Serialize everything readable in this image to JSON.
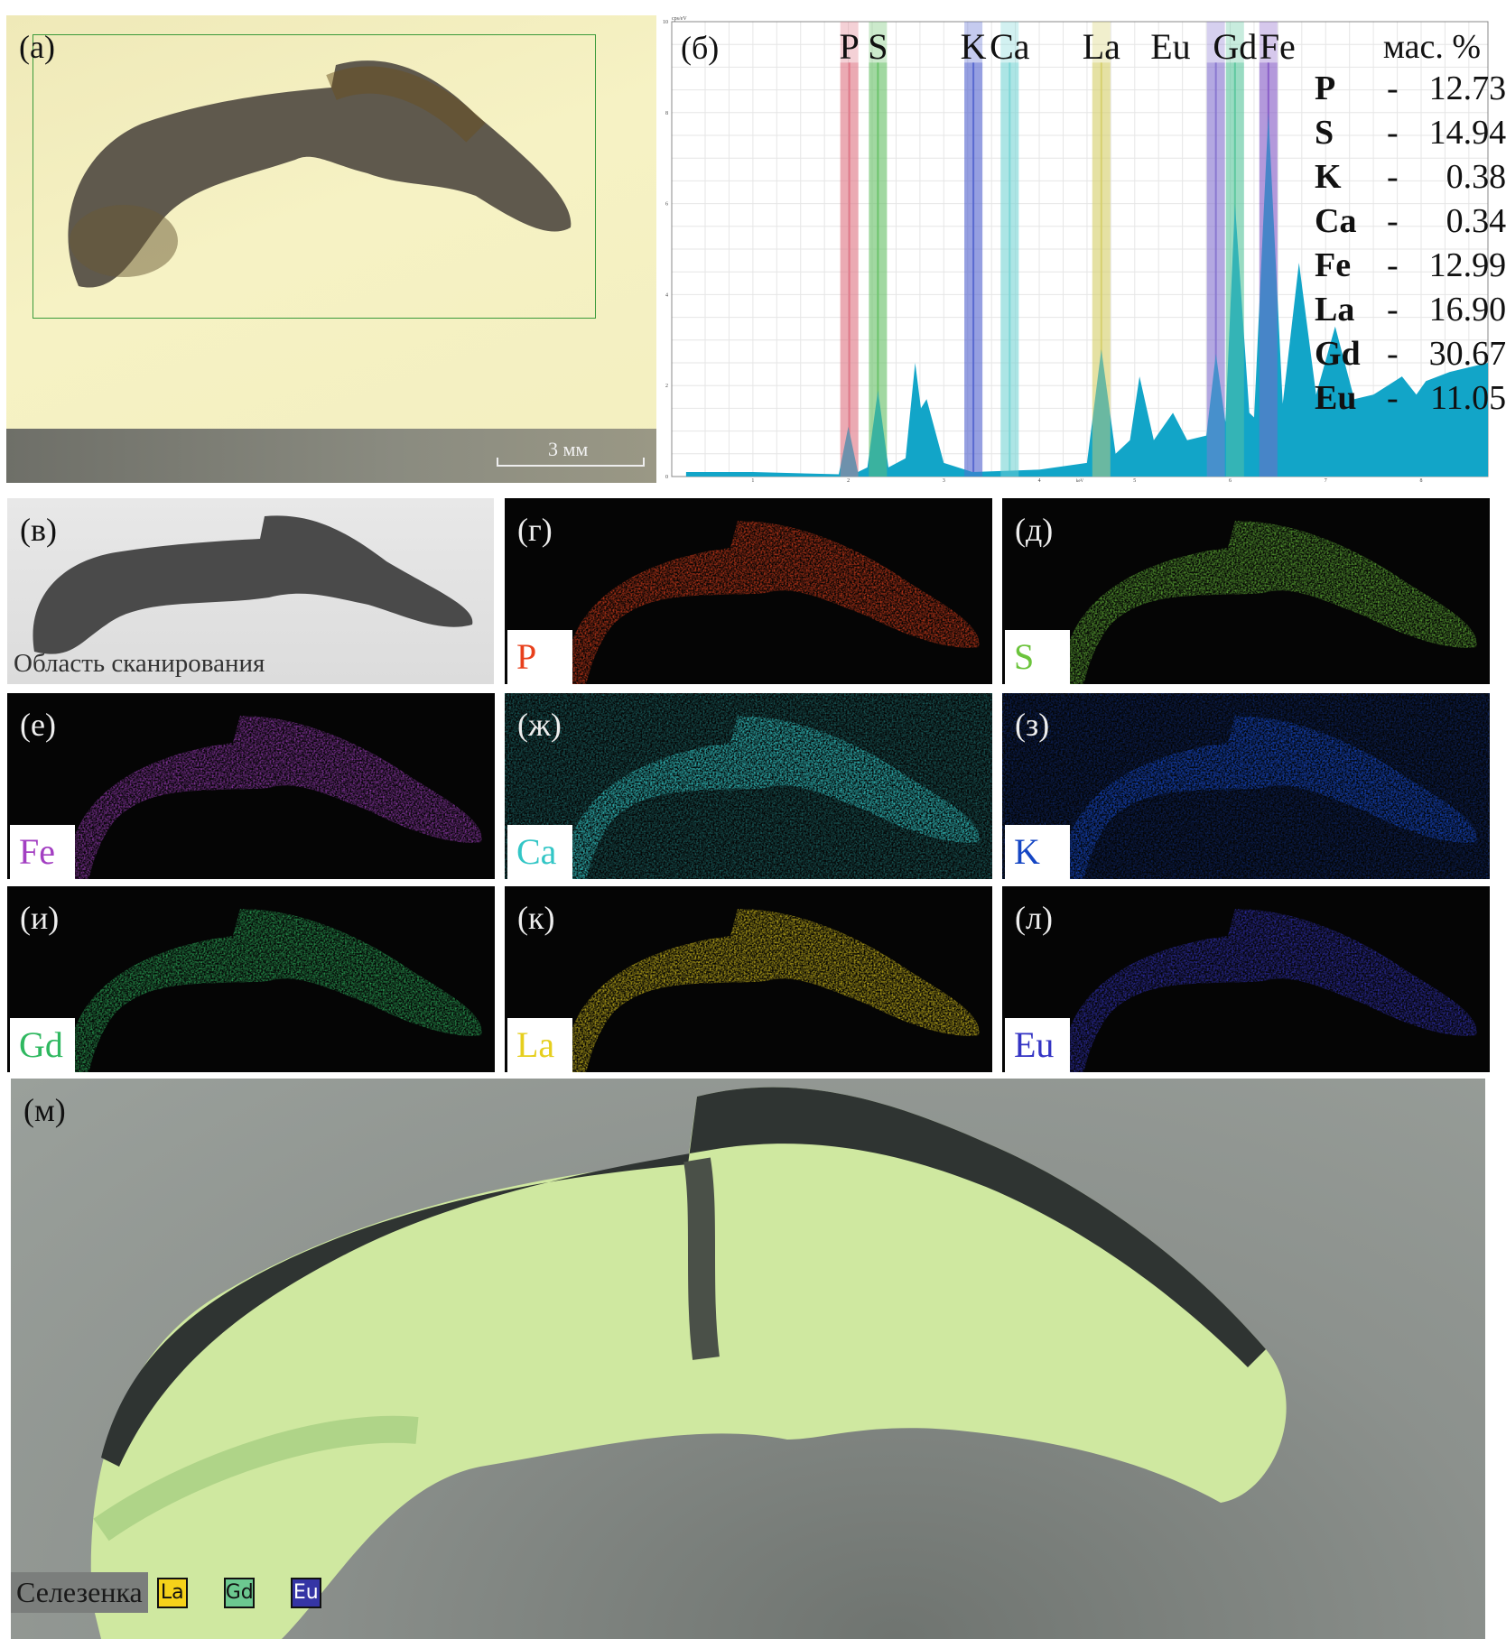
{
  "panel_a": {
    "label": "(а)",
    "scale_bar": "3 мм"
  },
  "panel_b": {
    "label": "(б)",
    "mass_title": "мас. %",
    "composition": [
      {
        "el": "P",
        "value": "12.73"
      },
      {
        "el": "S",
        "value": "14.94"
      },
      {
        "el": "K",
        "value": "0.38"
      },
      {
        "el": "Ca",
        "value": "0.34"
      },
      {
        "el": "Fe",
        "value": "12.99"
      },
      {
        "el": "La",
        "value": "16.90"
      },
      {
        "el": "Gd",
        "value": "30.67"
      },
      {
        "el": "Eu",
        "value": "11.05"
      }
    ]
  },
  "chart_data": {
    "type": "area",
    "xlabel": "keV",
    "ylabel": "cps/eV",
    "xlim": [
      0.15,
      8.7
    ],
    "ylim": [
      0,
      10
    ],
    "xticks": [
      1,
      2,
      3,
      4,
      5,
      6,
      7,
      8
    ],
    "yticks": [
      0,
      2,
      4,
      6,
      8,
      10
    ],
    "grid": true,
    "fill_color": "#12a5c8",
    "spectrum": [
      [
        0.3,
        0.1
      ],
      [
        1.0,
        0.1
      ],
      [
        1.9,
        0.05
      ],
      [
        2.0,
        1.1
      ],
      [
        2.1,
        0.1
      ],
      [
        2.2,
        0.2
      ],
      [
        2.31,
        1.9
      ],
      [
        2.42,
        0.2
      ],
      [
        2.6,
        0.4
      ],
      [
        2.7,
        2.5
      ],
      [
        2.76,
        1.5
      ],
      [
        2.82,
        1.7
      ],
      [
        3.0,
        0.3
      ],
      [
        3.3,
        0.1
      ],
      [
        4.0,
        0.15
      ],
      [
        4.5,
        0.3
      ],
      [
        4.65,
        2.8
      ],
      [
        4.8,
        0.5
      ],
      [
        4.95,
        0.8
      ],
      [
        5.05,
        2.2
      ],
      [
        5.2,
        0.8
      ],
      [
        5.4,
        1.4
      ],
      [
        5.55,
        0.8
      ],
      [
        5.75,
        0.9
      ],
      [
        5.85,
        2.7
      ],
      [
        5.95,
        1.2
      ],
      [
        6.05,
        6.0
      ],
      [
        6.2,
        1.4
      ],
      [
        6.25,
        1.3
      ],
      [
        6.4,
        8.0
      ],
      [
        6.55,
        1.6
      ],
      [
        6.72,
        4.7
      ],
      [
        6.9,
        1.8
      ],
      [
        7.1,
        3.3
      ],
      [
        7.3,
        1.7
      ],
      [
        7.5,
        1.8
      ],
      [
        7.8,
        2.2
      ],
      [
        7.95,
        1.8
      ],
      [
        8.05,
        2.1
      ],
      [
        8.3,
        2.3
      ],
      [
        8.7,
        2.5
      ]
    ],
    "element_lines": [
      {
        "el": "P",
        "kev": 2.01,
        "color": "#e07a8a"
      },
      {
        "el": "S",
        "kev": 2.31,
        "color": "#6cc46c"
      },
      {
        "el": "K",
        "kev": 3.31,
        "color": "#5a6ad0"
      },
      {
        "el": "Ca",
        "kev": 3.69,
        "color": "#7fd6d6"
      },
      {
        "el": "La",
        "kev": 4.65,
        "color": "#d8d070"
      },
      {
        "el": "Eu",
        "kev": 5.85,
        "color": "#8a78d0"
      },
      {
        "el": "Gd",
        "kev": 6.05,
        "color": "#60c8a0"
      },
      {
        "el": "Fe",
        "kev": 6.4,
        "color": "#8a60c8"
      }
    ]
  },
  "panel_v": {
    "label": "(в)",
    "caption": "Область сканирования"
  },
  "maps": [
    {
      "label": "(г)",
      "element": "P",
      "color": "#e8401c"
    },
    {
      "label": "(д)",
      "element": "S",
      "color": "#6cc43c"
    },
    {
      "label": "(е)",
      "element": "Fe",
      "color": "#a33fc2"
    },
    {
      "label": "(ж)",
      "element": "Ca",
      "color": "#33c6c6"
    },
    {
      "label": "(з)",
      "element": "K",
      "color": "#1546c4"
    },
    {
      "label": "(и)",
      "element": "Gd",
      "color": "#2fb860"
    },
    {
      "label": "(к)",
      "element": "La",
      "color": "#e6cf1e"
    },
    {
      "label": "(л)",
      "element": "Eu",
      "color": "#3434c4"
    }
  ],
  "panel_m": {
    "label": "(м)",
    "caption": "Селезенка",
    "legend": [
      {
        "el": "La",
        "color": "#f5d21a",
        "text": "#111"
      },
      {
        "el": "Gd",
        "color": "#6cc890",
        "text": "#111"
      },
      {
        "el": "Eu",
        "color": "#3535a5",
        "text": "#fff"
      }
    ]
  }
}
